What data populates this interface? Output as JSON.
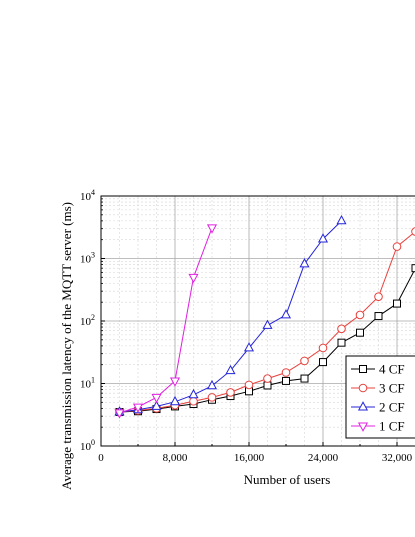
{
  "chart_data": {
    "type": "line",
    "title": "",
    "xlabel": "Number of users",
    "ylabel": "Average transmission latency of the MQTT server (ms)",
    "x_scale": "linear",
    "y_scale": "log",
    "xlim": [
      0,
      36000
    ],
    "ylim": [
      1,
      10000
    ],
    "grid": true,
    "legend_position": "bottom-right",
    "x_ticks": [
      {
        "value": 0,
        "label": "0"
      },
      {
        "value": 8000,
        "label": "8,000"
      },
      {
        "value": 16000,
        "label": "16,000"
      },
      {
        "value": 24000,
        "label": "24,000"
      },
      {
        "value": 32000,
        "label": "32,000"
      }
    ],
    "y_ticks": [
      {
        "value": 1,
        "base": "10",
        "exp": "0"
      },
      {
        "value": 10,
        "base": "10",
        "exp": "1"
      },
      {
        "value": 100,
        "base": "10",
        "exp": "2"
      },
      {
        "value": 1000,
        "base": "10",
        "exp": "3"
      },
      {
        "value": 10000,
        "base": "10",
        "exp": "4"
      }
    ],
    "series": [
      {
        "name": "4 CF",
        "color": "#000000",
        "marker": "square",
        "x": [
          2000,
          4000,
          6000,
          8000,
          10000,
          12000,
          14000,
          16000,
          18000,
          20000,
          22000,
          24000,
          26000,
          28000,
          30000,
          32000,
          34000
        ],
        "y": [
          3.5,
          3.6,
          3.9,
          4.3,
          4.7,
          5.5,
          6.3,
          7.5,
          9.3,
          11,
          12,
          22,
          45,
          65,
          120,
          190,
          700
        ]
      },
      {
        "name": "3 CF",
        "color": "#e8413c",
        "marker": "circle",
        "x": [
          2000,
          4000,
          6000,
          8000,
          10000,
          12000,
          14000,
          16000,
          18000,
          20000,
          22000,
          24000,
          26000,
          28000,
          30000,
          32000,
          34000
        ],
        "y": [
          3.5,
          3.7,
          4.0,
          4.5,
          5.2,
          6.0,
          7.2,
          9.5,
          12,
          15,
          23,
          37,
          75,
          125,
          245,
          1550,
          2700
        ]
      },
      {
        "name": "2 CF",
        "color": "#2424d8",
        "marker": "triangle-up",
        "x": [
          2000,
          4000,
          6000,
          8000,
          10000,
          12000,
          14000,
          16000,
          18000,
          20000,
          22000,
          24000,
          26000
        ],
        "y": [
          3.5,
          3.8,
          4.3,
          5.1,
          6.6,
          9.2,
          16,
          37,
          85,
          125,
          820,
          2050,
          4000
        ]
      },
      {
        "name": "1 CF",
        "color": "#e020e0",
        "marker": "triangle-down",
        "x": [
          2000,
          4000,
          6000,
          8000,
          10000,
          12000
        ],
        "y": [
          3.4,
          4.2,
          6.0,
          11,
          500,
          3100
        ]
      }
    ]
  }
}
